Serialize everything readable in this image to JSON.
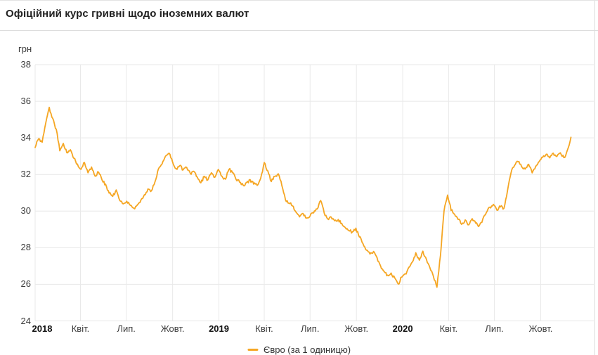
{
  "header": {
    "title": "Офіційний курс гривні щодо іноземних валют"
  },
  "legend": {
    "label": "Євро (за 1 одиницю)",
    "color": "#F5A623"
  },
  "chart_data": {
    "type": "line",
    "title": "Офіційний курс гривні щодо іноземних валют",
    "ylabel": "грн",
    "ylim": [
      24,
      38
    ],
    "y_ticks": [
      38,
      36,
      34,
      32,
      30,
      28,
      26,
      24
    ],
    "x_ticks": [
      {
        "label": "2018",
        "bold": true
      },
      {
        "label": "Квіт.",
        "bold": false
      },
      {
        "label": "Лип.",
        "bold": false
      },
      {
        "label": "Жовт.",
        "bold": false
      },
      {
        "label": "2019",
        "bold": true
      },
      {
        "label": "Квіт.",
        "bold": false
      },
      {
        "label": "Лип.",
        "bold": false
      },
      {
        "label": "Жовт.",
        "bold": false
      },
      {
        "label": "2020",
        "bold": true
      },
      {
        "label": "Квіт.",
        "bold": false
      },
      {
        "label": "Лип.",
        "bold": false
      },
      {
        "label": "Жовт.",
        "bold": false
      }
    ],
    "grid": true,
    "legend_position": "bottom-center",
    "series": [
      {
        "name": "Євро (за 1 одиницю)",
        "color": "#F5A623",
        "start_date": "2018-01-01",
        "step_days": 7,
        "values": [
          33.5,
          33.95,
          33.75,
          34.8,
          35.65,
          35.05,
          34.45,
          33.3,
          33.7,
          33.2,
          33.35,
          32.9,
          32.55,
          32.3,
          32.65,
          32.1,
          32.4,
          31.9,
          32.15,
          31.7,
          31.45,
          31.0,
          30.8,
          31.15,
          30.6,
          30.4,
          30.55,
          30.3,
          30.15,
          30.35,
          30.6,
          30.9,
          31.2,
          31.1,
          31.6,
          32.3,
          32.55,
          33.0,
          33.15,
          32.7,
          32.3,
          32.5,
          32.25,
          32.4,
          32.05,
          32.15,
          31.85,
          31.55,
          31.9,
          31.7,
          32.1,
          31.85,
          32.25,
          31.9,
          31.75,
          32.3,
          32.1,
          31.75,
          31.6,
          31.4,
          31.55,
          31.7,
          31.5,
          31.4,
          31.8,
          32.65,
          32.2,
          31.6,
          31.9,
          32.05,
          31.4,
          30.6,
          30.45,
          30.3,
          29.95,
          29.7,
          29.85,
          29.6,
          29.75,
          29.9,
          30.1,
          30.6,
          29.9,
          29.55,
          29.65,
          29.45,
          29.55,
          29.3,
          29.1,
          28.95,
          28.85,
          29.05,
          28.6,
          28.25,
          27.85,
          27.65,
          27.8,
          27.45,
          27.0,
          26.7,
          26.5,
          26.6,
          26.35,
          26.0,
          26.4,
          26.55,
          26.9,
          27.2,
          27.7,
          27.3,
          27.8,
          27.35,
          26.9,
          26.45,
          25.85,
          27.6,
          30.0,
          30.9,
          30.05,
          29.85,
          29.55,
          29.3,
          29.5,
          29.25,
          29.6,
          29.35,
          29.2,
          29.55,
          29.9,
          30.2,
          30.35,
          30.05,
          30.25,
          30.15,
          31.1,
          32.1,
          32.5,
          32.7,
          32.45,
          32.3,
          32.55,
          32.1,
          32.45,
          32.7,
          32.95,
          33.1,
          32.9,
          33.15,
          33.0,
          33.2,
          32.9,
          33.3,
          34.05
        ]
      }
    ]
  }
}
